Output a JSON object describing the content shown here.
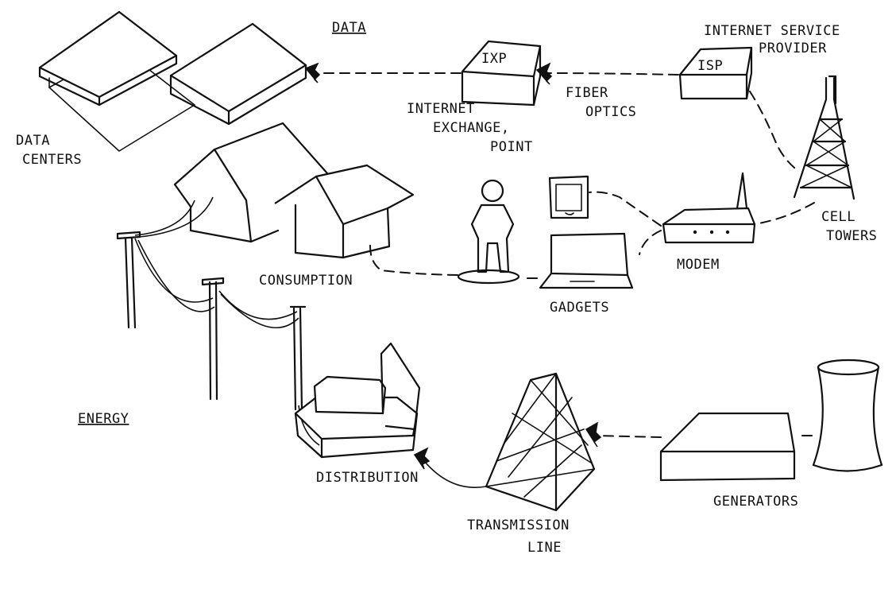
{
  "sections": {
    "data": "DATA",
    "energy": "ENERGY"
  },
  "nodes": {
    "data_centers": [
      "DATA",
      "CENTERS"
    ],
    "ixp": {
      "box_label": "IXP",
      "caption": [
        "INTERNET",
        "EXCHANGE,",
        "POINT"
      ]
    },
    "fiber_optics": [
      "FIBER",
      "OPTICS"
    ],
    "isp": {
      "box_label": "ISP",
      "caption": [
        "INTERNET SERVICE",
        "PROVIDER"
      ]
    },
    "cell_towers": [
      "CELL",
      "TOWERS"
    ],
    "modem": "MODEM",
    "gadgets": "GADGETS",
    "consumption": "CONSUMPTION",
    "distribution": "DISTRIBUTION",
    "transmission_line": [
      "TRANSMISSION",
      "LINE"
    ],
    "generators": "GENERATORS"
  },
  "colors": {
    "ink": "#111111",
    "paper": "#ffffff"
  }
}
